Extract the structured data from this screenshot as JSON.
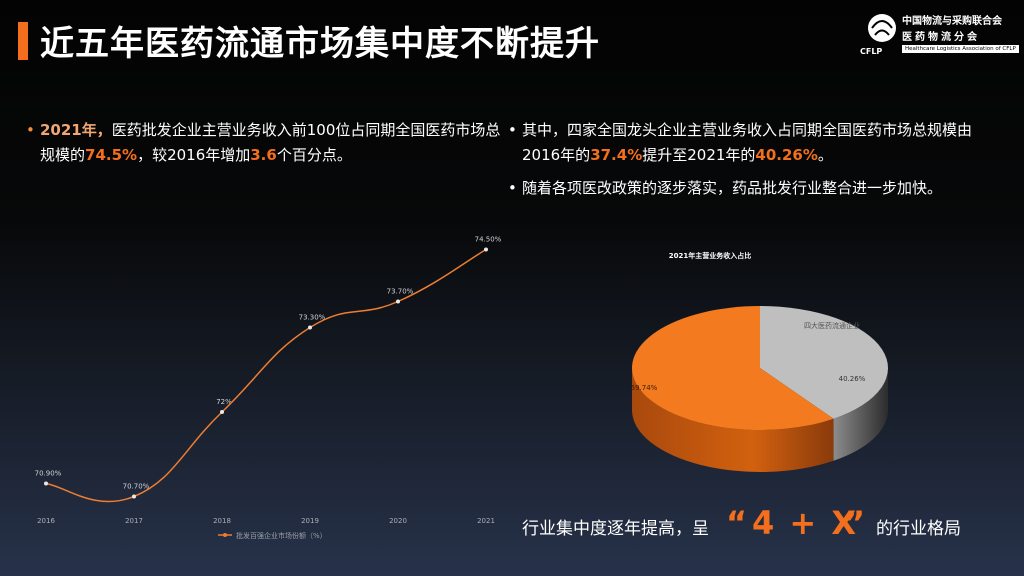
{
  "header": {
    "title": "近五年医药流通市场集中度不断提升",
    "logo": {
      "line1": "中国物流与采购联合会",
      "line2": "医药物流分会",
      "line3": "Healthcare Logistics Association of CFLP",
      "mark_text": "CFLP"
    }
  },
  "left_bullet": {
    "year": "2021年，",
    "text1": "医药批发企业主营业务收入前100位占同期全国医药市场总规模的",
    "value1": "74.5%",
    "text2": "，较2016年增加",
    "value2": "3.6",
    "text3": "个百分点。"
  },
  "right_bullets": [
    {
      "text1": "其中，四家全国龙头企业主营业务收入占同期全国医药市场总规模由2016年的",
      "value1": "37.4%",
      "text2": "提升至2021年的",
      "value2": "40.26%",
      "text3": "。"
    },
    {
      "text": "随着各项医改政策的逐步落实，药品批发行业整合进一步加快。"
    }
  ],
  "line_chart": {
    "chart_data": {
      "type": "line",
      "categories": [
        "2016",
        "2017",
        "2018",
        "2019",
        "2020",
        "2021"
      ],
      "series": [
        {
          "name": "批发百强企业市场份额（%）",
          "values": [
            70.9,
            70.7,
            72,
            73.3,
            73.7,
            74.5
          ]
        }
      ],
      "data_labels": [
        "70.90%",
        "70.70%",
        "72%",
        "73.30%",
        "73.70%",
        "74.50%"
      ],
      "grid": false,
      "legend_position": "bottom"
    },
    "series_color": "#ed7d31"
  },
  "pie_chart": {
    "chart_data": {
      "type": "pie",
      "title": "2021年主营业务收入占比",
      "slices": [
        {
          "value": 40.26,
          "label": "40.26%",
          "name": "四大医药流通企业",
          "color": "#bfbfbf"
        },
        {
          "value": 59.74,
          "label": "59.74%",
          "color": "#f37a1f"
        }
      ]
    }
  },
  "summary": {
    "text1": "行业集中度逐年提高，呈",
    "open_quote": "“",
    "emphasis": "4 + X",
    "close_quote": "”",
    "text2": "的行业格局"
  }
}
